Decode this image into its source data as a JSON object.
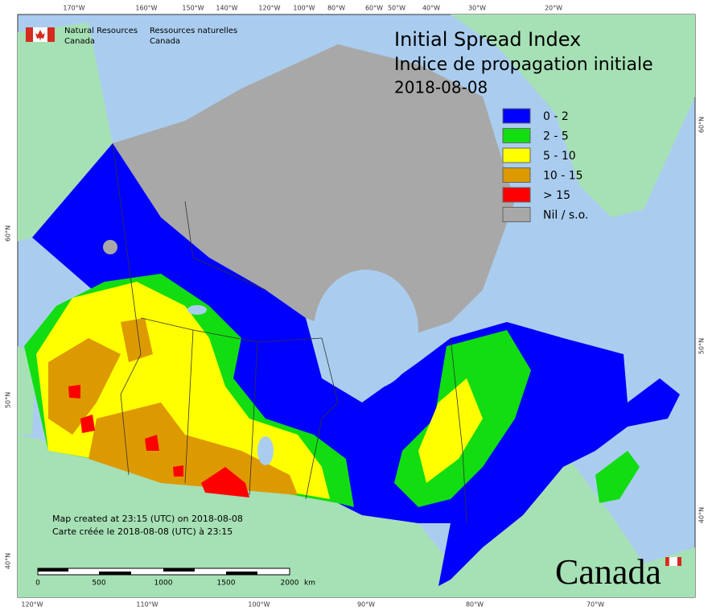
{
  "header": {
    "org_en_1": "Natural Resources",
    "org_en_2": "Canada",
    "org_fr_1": "Ressources naturelles",
    "org_fr_2": "Canada"
  },
  "title": {
    "en": "Initial Spread Index",
    "fr": "Indice de propagation initiale",
    "date": "2018-08-08"
  },
  "legend": [
    {
      "label": "0 - 2",
      "color": "#0000ff"
    },
    {
      "label": "2 - 5",
      "color": "#11dd11"
    },
    {
      "label": "5 - 10",
      "color": "#ffff00"
    },
    {
      "label": "10 - 15",
      "color": "#dd9900"
    },
    {
      "label": "> 15",
      "color": "#ff0000"
    },
    {
      "label": "Nil / s.o.",
      "color": "#a8a8a8"
    }
  ],
  "graticule": {
    "top": [
      "170°W",
      "160°W",
      "150°W",
      "140°W",
      "120°W",
      "100°W",
      "80°W",
      "60°W",
      "50°W",
      "40°W",
      "30°W",
      "20°W"
    ],
    "bottom": [
      "120°W",
      "110°W",
      "100°W",
      "90°W",
      "80°W",
      "70°W"
    ],
    "left": [
      "60°N",
      "50°N",
      "40°N"
    ],
    "right": [
      "60°N",
      "50°N",
      "40°N"
    ]
  },
  "notes": [
    "Map created at 23:15 (UTC) on 2018-08-08",
    "Carte créée le 2018-08-08 (UTC) à 23:15"
  ],
  "scale_bar": {
    "labels": [
      "0",
      "500",
      "1000",
      "1500",
      "2000"
    ],
    "unit": "km"
  },
  "wordmark": "Canada"
}
